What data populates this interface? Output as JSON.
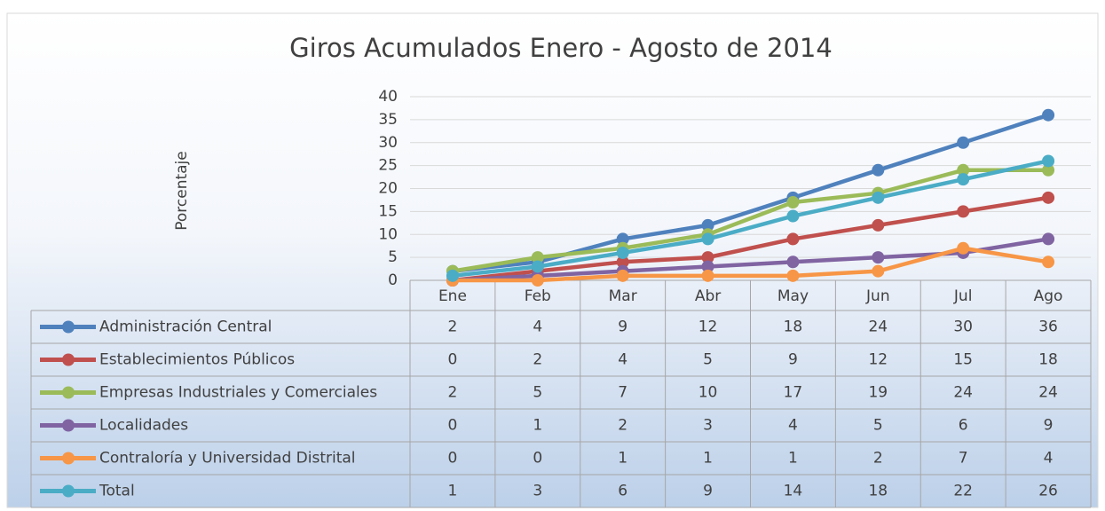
{
  "chart_data": {
    "type": "line",
    "title": "Giros  Acumulados Enero - Agosto de 2014",
    "y_label": "Porcentaje",
    "categories": [
      "Ene",
      "Feb",
      "Mar",
      "Abr",
      "May",
      "Jun",
      "Jul",
      "Ago"
    ],
    "series": [
      {
        "name": "Administración Central",
        "color": "#4f81bd",
        "values": [
          2,
          4,
          9,
          12,
          18,
          24,
          30,
          36
        ]
      },
      {
        "name": "Establecimientos Públicos",
        "color": "#c0504d",
        "values": [
          0,
          2,
          4,
          5,
          9,
          12,
          15,
          18
        ]
      },
      {
        "name": "Empresas Industriales y Comerciales",
        "color": "#9bbb59",
        "values": [
          2,
          5,
          7,
          10,
          17,
          19,
          24,
          24
        ]
      },
      {
        "name": "Localidades",
        "color": "#8064a2",
        "values": [
          0,
          1,
          2,
          3,
          4,
          5,
          6,
          9
        ]
      },
      {
        "name": "Contraloría y Universidad Distrital",
        "color": "#f79646",
        "values": [
          0,
          0,
          1,
          1,
          1,
          2,
          7,
          4
        ]
      },
      {
        "name": "Total",
        "color": "#4bacc6",
        "values": [
          1,
          3,
          6,
          9,
          14,
          18,
          22,
          26
        ]
      }
    ],
    "ylim": [
      0,
      40
    ],
    "yticks": [
      0,
      5,
      10,
      15,
      20,
      25,
      30,
      35,
      40
    ],
    "grid": true,
    "data_table": true
  }
}
